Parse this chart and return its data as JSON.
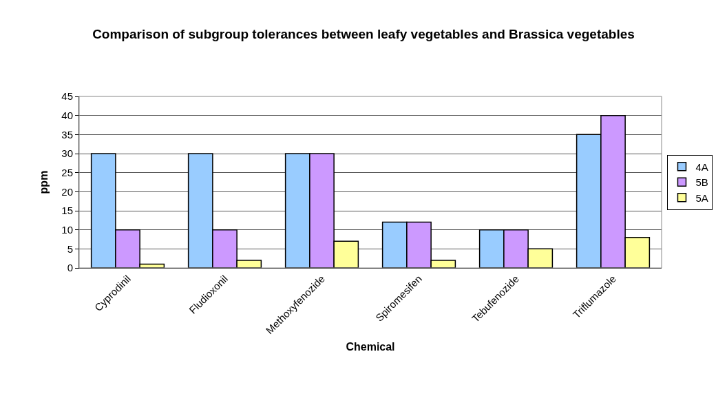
{
  "chart_data": {
    "type": "bar",
    "title": "Comparison of subgroup tolerances between leafy vegetables and Brassica vegetables",
    "xlabel": "Chemical",
    "ylabel": "ppm",
    "categories": [
      "Cyprodinil",
      "Fludioxonil",
      "Methoxyfenozide",
      "Spiromesifen",
      "Tebufenozide",
      "Triflumazole"
    ],
    "series": [
      {
        "name": "4A",
        "color": "#99ccff",
        "values": [
          30,
          30,
          30,
          12,
          10,
          35
        ]
      },
      {
        "name": "5B",
        "color": "#cc99ff",
        "values": [
          10,
          10,
          30,
          12,
          10,
          40
        ]
      },
      {
        "name": "5A",
        "color": "#ffff99",
        "values": [
          1,
          2,
          7,
          2,
          5,
          8
        ]
      }
    ],
    "ylim": [
      0,
      45
    ],
    "yticks": [
      0,
      5,
      10,
      15,
      20,
      25,
      30,
      35,
      40,
      45
    ],
    "grid": "y",
    "legend": "right"
  }
}
